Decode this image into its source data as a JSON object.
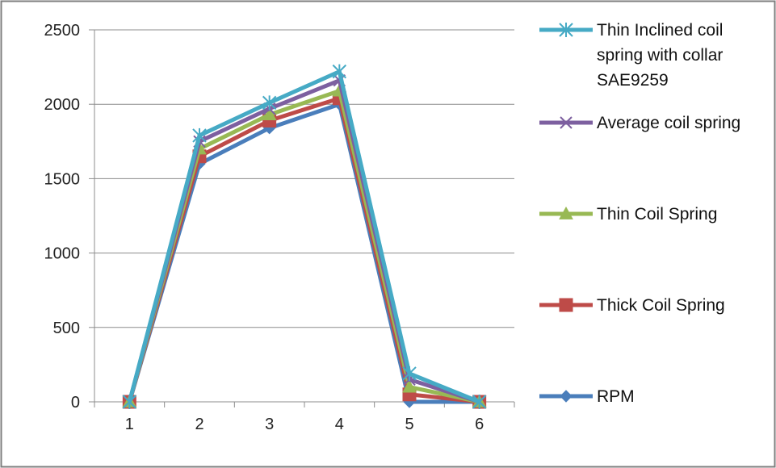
{
  "chart_data": {
    "type": "line",
    "title": "",
    "xlabel": "",
    "ylabel": "",
    "x": [
      1,
      2,
      3,
      4,
      5,
      6
    ],
    "ylim": [
      0,
      2500
    ],
    "yticks": [
      0,
      500,
      1000,
      1500,
      2000,
      2500
    ],
    "grid": "horizontal",
    "legend_position": "right",
    "series": [
      {
        "name": "RPM",
        "label_lines": [
          "RPM"
        ],
        "color": "#4a7ebb",
        "marker": "diamond",
        "values": [
          0,
          1600,
          1840,
          2000,
          0,
          0
        ]
      },
      {
        "name": "Thick Coil Spring",
        "label_lines": [
          "Thick Coil Spring"
        ],
        "color": "#be4b48",
        "marker": "square",
        "values": [
          0,
          1650,
          1890,
          2040,
          50,
          0
        ]
      },
      {
        "name": "Thin Coil Spring",
        "label_lines": [
          "Thin Coil Spring"
        ],
        "color": "#98b954",
        "marker": "triangle",
        "values": [
          0,
          1700,
          1930,
          2090,
          100,
          0
        ]
      },
      {
        "name": "Average coil spring",
        "label_lines": [
          "Average coil spring"
        ],
        "color": "#7d60a0",
        "marker": "x",
        "values": [
          0,
          1750,
          1970,
          2160,
          150,
          0
        ]
      },
      {
        "name": "Thin Inclined coil spring with collar SAE9259",
        "label_lines": [
          "Thin Inclined coil",
          "spring with collar",
          "SAE9259"
        ],
        "color": "#46aac5",
        "marker": "star",
        "values": [
          0,
          1790,
          2010,
          2220,
          190,
          0
        ]
      }
    ]
  }
}
